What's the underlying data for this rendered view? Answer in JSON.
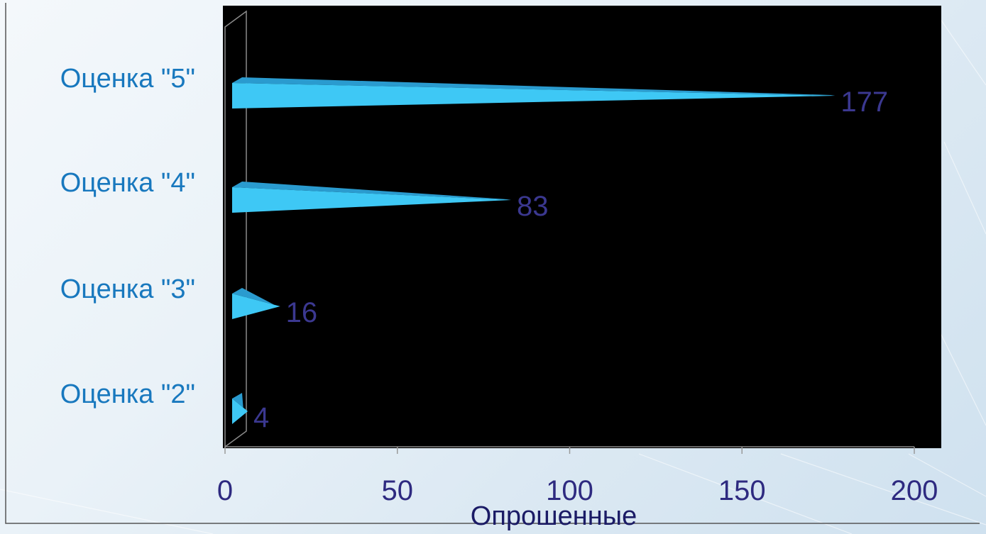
{
  "chart_data": {
    "type": "bar",
    "orientation": "horizontal",
    "style": "3d-cone",
    "categories": [
      "Оценка \"5\"",
      "Оценка \"4\"",
      "Оценка \"3\"",
      "Оценка \"2\""
    ],
    "values": [
      177,
      83,
      16,
      4
    ],
    "xlabel": "Опрошенные",
    "xlim": [
      0,
      200
    ],
    "xticks": [
      0,
      50,
      100,
      150,
      200
    ],
    "grid": false,
    "legend": "none"
  },
  "colors": {
    "plot_background": "#000000",
    "bar_fill": "#3ec8f5",
    "bar_top": "#2a9bcf",
    "category_label": "#1878be",
    "value_label": "#3b3890",
    "tick_label": "#2e2a80",
    "axis_title": "#1b1b66",
    "axis_line": "#9a9a9a"
  }
}
